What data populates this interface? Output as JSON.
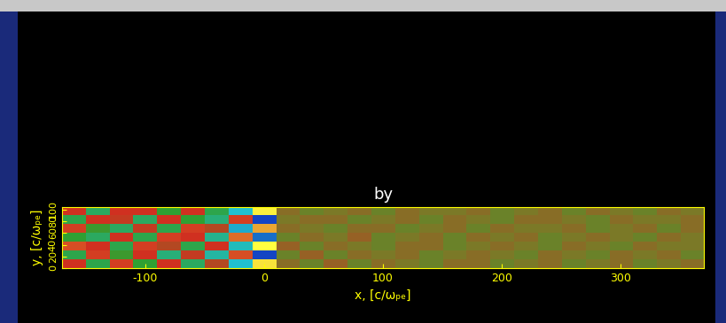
{
  "chart_data": {
    "type": "heatmap",
    "title": "by",
    "x_label": "x, [c/ωₚₑ]",
    "y_label": "y, [c/ωₚₑ]",
    "xlim": [
      -170,
      370
    ],
    "ylim": [
      0,
      105
    ],
    "xticks": [
      -100,
      0,
      100,
      200,
      300
    ],
    "yticks": [
      0,
      20,
      40,
      60,
      80,
      100
    ],
    "color_range": [
      -1,
      1
    ],
    "cells": [
      [
        0.3,
        -0.3,
        0.35,
        -0.25,
        0.3,
        -0.35,
        0.2,
        -0.6,
        0.9,
        0.05,
        -0.05,
        0.1,
        -0.05,
        0.05,
        0.0,
        -0.05,
        0.05,
        0.05,
        -0.05,
        0.0,
        0.05,
        -0.05,
        0.0,
        0.05,
        -0.05,
        0.0,
        0.05
      ],
      [
        -0.3,
        0.35,
        -0.2,
        0.3,
        -0.4,
        0.25,
        -0.5,
        0.4,
        -0.9,
        -0.05,
        0.1,
        -0.05,
        0.05,
        0.0,
        0.05,
        -0.05,
        0.0,
        0.05,
        0.0,
        -0.05,
        0.05,
        0.0,
        -0.05,
        0.05,
        0.0,
        0.05,
        -0.05
      ],
      [
        0.4,
        0.3,
        -0.3,
        0.35,
        0.2,
        -0.3,
        0.3,
        -0.55,
        1.0,
        0.1,
        -0.05,
        0.05,
        0.0,
        -0.05,
        0.05,
        0.05,
        -0.05,
        0.0,
        0.05,
        0.0,
        -0.05,
        0.05,
        0.0,
        -0.05,
        0.05,
        0.0,
        0.0
      ],
      [
        -0.25,
        -0.35,
        0.3,
        -0.3,
        0.35,
        0.3,
        -0.45,
        0.5,
        -0.8,
        -0.05,
        0.05,
        0.0,
        0.1,
        -0.05,
        0.0,
        0.05,
        -0.05,
        0.05,
        0.0,
        0.05,
        -0.05,
        0.0,
        0.05,
        0.0,
        -0.05,
        0.05,
        0.0
      ],
      [
        0.35,
        -0.2,
        -0.35,
        0.25,
        -0.3,
        0.35,
        0.2,
        -0.65,
        0.7,
        0.05,
        0.0,
        -0.05,
        0.05,
        0.05,
        -0.05,
        0.0,
        0.05,
        -0.05,
        0.05,
        0.0,
        0.0,
        0.05,
        -0.05,
        0.0,
        0.05,
        -0.05,
        0.05
      ],
      [
        -0.3,
        0.3,
        0.25,
        -0.35,
        0.3,
        -0.25,
        -0.4,
        0.35,
        -0.9,
        0.0,
        0.05,
        0.05,
        -0.05,
        0.0,
        0.05,
        -0.05,
        0.05,
        0.0,
        -0.05,
        0.05,
        0.05,
        0.0,
        -0.05,
        0.05,
        0.0,
        0.0,
        0.05
      ],
      [
        0.3,
        -0.35,
        0.3,
        0.3,
        -0.25,
        0.3,
        -0.3,
        -0.6,
        0.95,
        0.05,
        -0.05,
        0.0,
        0.05,
        -0.05,
        0.05,
        0.0,
        0.0,
        0.05,
        -0.05,
        0.0,
        0.05,
        -0.05,
        0.05,
        0.0,
        -0.05,
        0.05,
        0.0
      ]
    ]
  }
}
